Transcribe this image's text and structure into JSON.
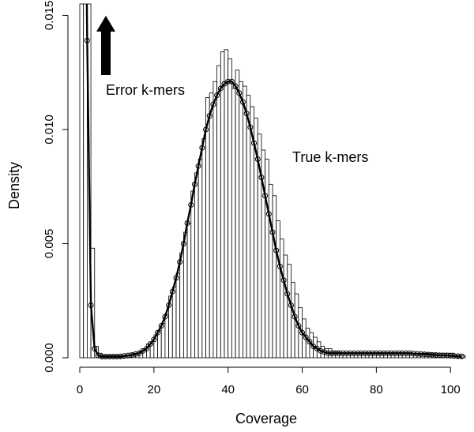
{
  "chart_data": {
    "type": "bar",
    "xlabel": "Coverage",
    "ylabel": "Density",
    "xlim": [
      0,
      104
    ],
    "ylim": [
      0,
      0.0155
    ],
    "x_ticks": [
      "0",
      "20",
      "40",
      "60",
      "80",
      "100"
    ],
    "y_ticks": [
      "0.000",
      "0.005",
      "0.010",
      "0.015"
    ],
    "x_tick_values": [
      0,
      20,
      40,
      60,
      80,
      100
    ],
    "y_tick_values": [
      0,
      0.005,
      0.01,
      0.015
    ],
    "grid": false,
    "annotations": {
      "error": "Error k-mers",
      "true": "True k-mers"
    },
    "series": [
      {
        "type": "histogram",
        "bin_width": 1,
        "x": [
          0,
          1,
          2,
          3,
          4,
          5,
          6,
          7,
          8,
          9,
          10,
          11,
          12,
          13,
          14,
          15,
          16,
          17,
          18,
          19,
          20,
          21,
          22,
          23,
          24,
          25,
          26,
          27,
          28,
          29,
          30,
          31,
          32,
          33,
          34,
          35,
          36,
          37,
          38,
          39,
          40,
          41,
          42,
          43,
          44,
          45,
          46,
          47,
          48,
          49,
          50,
          51,
          52,
          53,
          54,
          55,
          56,
          57,
          58,
          59,
          60,
          61,
          62,
          63,
          64,
          65,
          66,
          67,
          68,
          69,
          70,
          71,
          72,
          73,
          74,
          75,
          76,
          77,
          78,
          79,
          80,
          81,
          82,
          83,
          84,
          85,
          86,
          87,
          88,
          89,
          90,
          91,
          92,
          93,
          94,
          95,
          96,
          97,
          98,
          99,
          100,
          101,
          102,
          103
        ],
        "values": [
          0.0155,
          0.0155,
          0.0155,
          0.0048,
          0.0005,
          0.0002,
          0.0001,
          0.0001,
          0.0001,
          0.0001,
          0.0001,
          0.0001,
          0.0001,
          0.0001,
          0.0002,
          0.0002,
          0.0003,
          0.0004,
          0.0006,
          0.0006,
          0.001,
          0.0012,
          0.0015,
          0.0019,
          0.0027,
          0.0031,
          0.0037,
          0.0046,
          0.0055,
          0.0059,
          0.0073,
          0.0081,
          0.0087,
          0.0096,
          0.0114,
          0.0116,
          0.0121,
          0.0128,
          0.0134,
          0.0135,
          0.0131,
          0.0118,
          0.0126,
          0.0121,
          0.0119,
          0.0115,
          0.011,
          0.0105,
          0.0098,
          0.0091,
          0.0087,
          0.0076,
          0.0071,
          0.006,
          0.0052,
          0.0045,
          0.0041,
          0.0033,
          0.0028,
          0.0022,
          0.0017,
          0.0013,
          0.0011,
          0.0009,
          0.0007,
          0.0005,
          0.0004,
          0.0004,
          0.0003,
          0.0003,
          0.0002,
          0.0002,
          0.0002,
          0.0002,
          0.0002,
          0.0002,
          0.0002,
          0.0002,
          0.0002,
          0.0002,
          0.0002,
          0.0002,
          0.0002,
          0.0002,
          0.0002,
          0.0002,
          0.0002,
          0.0002,
          0.0002,
          0.0002,
          0.0002,
          0.0002,
          0.0002,
          0.0002,
          0.0002,
          0.0002,
          0.0002,
          0.0002,
          0.0002,
          0.0002,
          0.0002,
          0.0001,
          0.0001,
          0.0001
        ]
      },
      {
        "type": "line",
        "marker": "circle",
        "x": [
          2,
          3,
          4,
          5,
          6,
          7,
          8,
          9,
          10,
          11,
          12,
          13,
          14,
          15,
          16,
          17,
          18,
          19,
          20,
          21,
          22,
          23,
          24,
          25,
          26,
          27,
          28,
          29,
          30,
          31,
          32,
          33,
          34,
          35,
          36,
          37,
          38,
          39,
          40,
          41,
          42,
          43,
          44,
          45,
          46,
          47,
          48,
          49,
          50,
          51,
          52,
          53,
          54,
          55,
          56,
          57,
          58,
          59,
          60,
          61,
          62,
          63,
          64,
          65,
          66,
          67,
          68,
          69,
          70,
          71,
          72,
          73,
          74,
          75,
          76,
          77,
          78,
          79,
          80,
          81,
          82,
          83,
          84,
          85,
          86,
          87,
          88,
          89,
          90,
          91,
          92,
          93,
          94,
          95,
          96,
          97,
          98,
          99,
          100,
          101,
          102,
          103
        ],
        "values": [
          0.0139,
          0.0023,
          0.0004,
          0.0001,
          5e-05,
          5e-05,
          5e-05,
          5e-05,
          5e-05,
          6e-05,
          8e-05,
          0.0001,
          0.00012,
          0.00016,
          0.0002,
          0.0003,
          0.0004,
          0.0006,
          0.0008,
          0.0011,
          0.0014,
          0.0018,
          0.0023,
          0.0029,
          0.0035,
          0.0042,
          0.005,
          0.0059,
          0.0067,
          0.0076,
          0.0084,
          0.0092,
          0.01,
          0.0106,
          0.0111,
          0.0115,
          0.0118,
          0.012,
          0.0121,
          0.0121,
          0.0119,
          0.0116,
          0.0112,
          0.0107,
          0.0101,
          0.0094,
          0.0087,
          0.0079,
          0.0071,
          0.0063,
          0.0055,
          0.0047,
          0.004,
          0.0034,
          0.0028,
          0.0023,
          0.0018,
          0.0014,
          0.0011,
          0.0009,
          0.0007,
          0.0005,
          0.0004,
          0.0003,
          0.00025,
          0.0002,
          0.0002,
          0.0002,
          0.0002,
          0.0002,
          0.0002,
          0.0002,
          0.0002,
          0.0002,
          0.0002,
          0.0002,
          0.0002,
          0.0002,
          0.0002,
          0.0002,
          0.0002,
          0.0002,
          0.0002,
          0.0002,
          0.0002,
          0.0002,
          0.0002,
          0.0002,
          0.00018,
          0.00017,
          0.00016,
          0.00015,
          0.00014,
          0.00013,
          0.00012,
          0.00011,
          0.0001,
          0.0001,
          9e-05,
          8e-05,
          7e-05,
          6e-05
        ]
      }
    ]
  }
}
